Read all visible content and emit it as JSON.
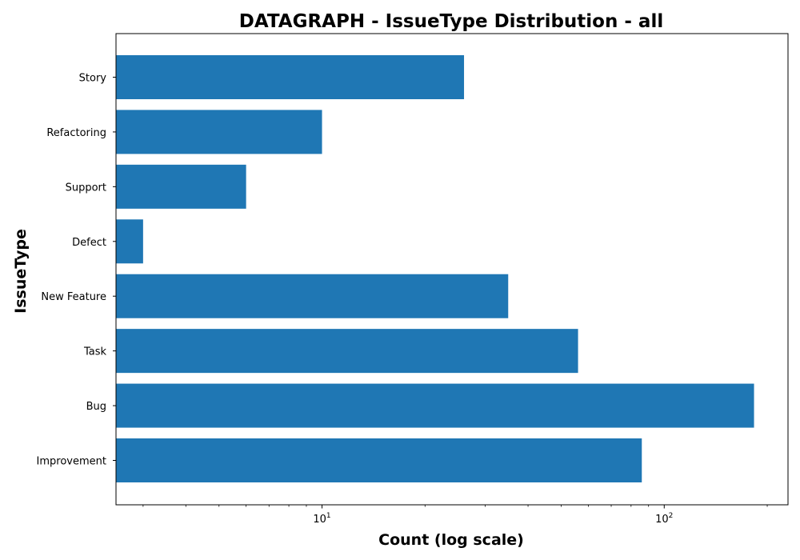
{
  "chart_data": {
    "type": "bar",
    "orientation": "horizontal",
    "title": "DATAGRAPH - IssueType Distribution - all",
    "xlabel": "Count (log scale)",
    "ylabel": "IssueType",
    "xscale": "log",
    "xlim": [
      2.5,
      230
    ],
    "x_major_ticks": [
      {
        "value": 10,
        "base": "10",
        "exponent": "1"
      },
      {
        "value": 100,
        "base": "10",
        "exponent": "2"
      }
    ],
    "categories": [
      "Story",
      "Refactoring",
      "Support",
      "Defect",
      "New Feature",
      "Task",
      "Bug",
      "Improvement"
    ],
    "values": [
      26,
      10,
      6,
      3,
      35,
      56,
      183,
      86
    ],
    "bar_color": "#1f77b4",
    "grid": false,
    "legend": "none"
  }
}
